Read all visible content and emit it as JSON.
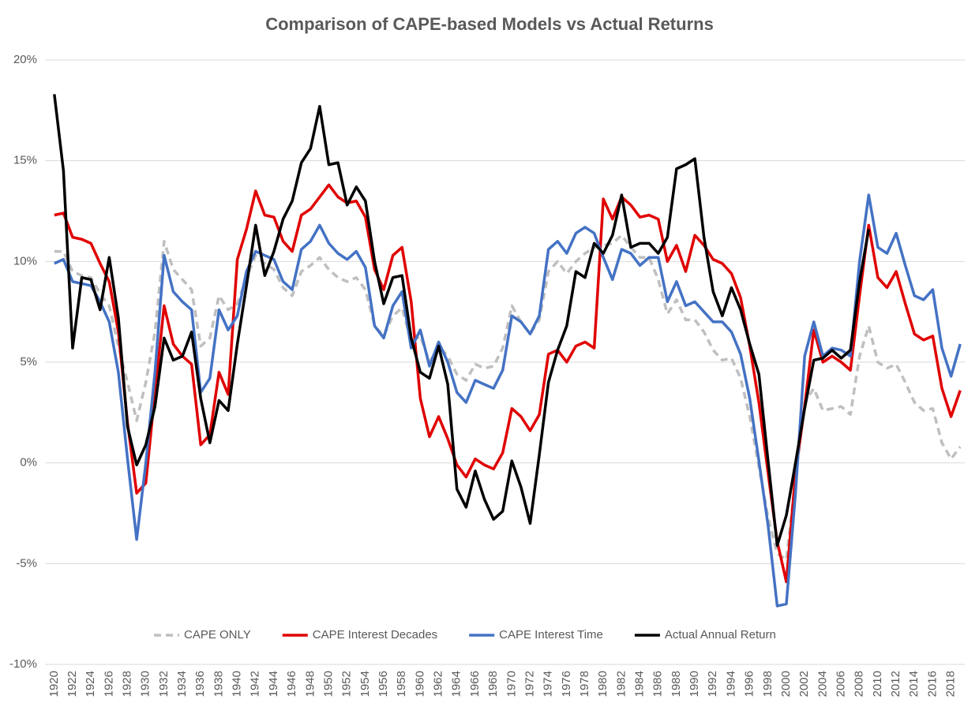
{
  "chart_data": {
    "type": "line",
    "title": "Comparison of CAPE-based Models vs Actual Returns",
    "x": [
      1920,
      1921,
      1922,
      1923,
      1924,
      1925,
      1926,
      1927,
      1928,
      1929,
      1930,
      1931,
      1932,
      1933,
      1934,
      1935,
      1936,
      1937,
      1938,
      1939,
      1940,
      1941,
      1942,
      1943,
      1944,
      1945,
      1946,
      1947,
      1948,
      1949,
      1950,
      1951,
      1952,
      1953,
      1954,
      1955,
      1956,
      1957,
      1958,
      1959,
      1960,
      1961,
      1962,
      1963,
      1964,
      1965,
      1966,
      1967,
      1968,
      1969,
      1970,
      1971,
      1972,
      1973,
      1974,
      1975,
      1976,
      1977,
      1978,
      1979,
      1980,
      1981,
      1982,
      1983,
      1984,
      1985,
      1986,
      1987,
      1988,
      1989,
      1990,
      1991,
      1992,
      1993,
      1994,
      1995,
      1996,
      1997,
      1998,
      1999,
      2000,
      2001,
      2002,
      2003,
      2004,
      2005,
      2006,
      2007,
      2008,
      2009,
      2010,
      2011,
      2012,
      2013,
      2014,
      2015,
      2016,
      2017,
      2018,
      2019
    ],
    "xlim": [
      1919.5,
      2019.5
    ],
    "xticks": [
      1920,
      1922,
      1924,
      1926,
      1928,
      1930,
      1932,
      1934,
      1936,
      1938,
      1940,
      1942,
      1944,
      1946,
      1948,
      1950,
      1952,
      1954,
      1956,
      1958,
      1960,
      1962,
      1964,
      1966,
      1968,
      1970,
      1972,
      1974,
      1976,
      1978,
      1980,
      1982,
      1984,
      1986,
      1988,
      1990,
      1992,
      1994,
      1996,
      1998,
      2000,
      2002,
      2004,
      2006,
      2008,
      2010,
      2012,
      2014,
      2016,
      2018
    ],
    "ylim": [
      -10,
      20
    ],
    "yticks": [
      {
        "value": -10,
        "label": "-10%"
      },
      {
        "value": -5,
        "label": "-5%"
      },
      {
        "value": 0,
        "label": "0%"
      },
      {
        "value": 5,
        "label": "5%"
      },
      {
        "value": 10,
        "label": "10%"
      },
      {
        "value": 15,
        "label": "15%"
      },
      {
        "value": 20,
        "label": "20%"
      }
    ],
    "grid": true,
    "legend": "bottom",
    "series": [
      {
        "name": "CAPE ONLY",
        "color": "#bfbfbf",
        "dashed": true,
        "values": [
          10.5,
          10.5,
          9.5,
          9.3,
          9.2,
          8.4,
          7.8,
          5.8,
          4.0,
          2.1,
          4.0,
          6.5,
          11.0,
          9.6,
          9.1,
          8.6,
          5.8,
          6.2,
          8.3,
          7.6,
          7.9,
          9.2,
          10.3,
          9.9,
          9.6,
          8.7,
          8.3,
          9.5,
          9.8,
          10.2,
          9.6,
          9.2,
          9.0,
          9.2,
          8.6,
          6.8,
          6.3,
          7.3,
          7.7,
          6.0,
          6.3,
          5.0,
          5.8,
          5.3,
          4.4,
          4.1,
          4.9,
          4.7,
          4.8,
          5.7,
          7.8,
          7.0,
          6.4,
          7.1,
          9.5,
          10.0,
          9.4,
          10.0,
          10.4,
          10.7,
          10.8,
          10.9,
          11.3,
          10.7,
          10.2,
          10.2,
          9.1,
          7.4,
          8.1,
          7.1,
          7.1,
          6.5,
          5.6,
          5.1,
          5.2,
          4.2,
          2.3,
          -0.2,
          -2.7,
          -4.5,
          -4.8,
          -0.8,
          3.0,
          3.7,
          2.6,
          2.7,
          2.8,
          2.4,
          5.3,
          6.8,
          5.0,
          4.7,
          4.9,
          4.0,
          3.0,
          2.6,
          2.7,
          1.0,
          0.2,
          0.8
        ]
      },
      {
        "name": "CAPE Interest Decades",
        "color": "#e00000",
        "dashed": false,
        "values": [
          12.3,
          12.4,
          11.2,
          11.1,
          10.9,
          9.9,
          9.0,
          6.5,
          2.0,
          -1.5,
          -1.0,
          3.5,
          7.8,
          5.9,
          5.3,
          4.9,
          0.9,
          1.4,
          4.5,
          3.4,
          10.1,
          11.6,
          13.5,
          12.3,
          12.2,
          11.0,
          10.5,
          12.3,
          12.6,
          13.2,
          13.8,
          13.2,
          12.9,
          13.0,
          12.2,
          9.6,
          8.6,
          10.3,
          10.7,
          8.0,
          3.2,
          1.3,
          2.3,
          1.2,
          -0.1,
          -0.7,
          0.2,
          -0.1,
          -0.3,
          0.5,
          2.7,
          2.3,
          1.6,
          2.4,
          5.4,
          5.6,
          5.0,
          5.8,
          6.0,
          5.7,
          13.1,
          12.1,
          13.2,
          12.8,
          12.2,
          12.3,
          12.1,
          10.0,
          10.8,
          9.5,
          11.3,
          10.8,
          10.1,
          9.9,
          9.4,
          8.2,
          5.8,
          3.0,
          -0.5,
          -3.9,
          -5.9,
          -0.5,
          2.8,
          6.6,
          5.0,
          5.3,
          5.0,
          4.6,
          8.3,
          11.8,
          9.2,
          8.7,
          9.5,
          7.9,
          6.4,
          6.1,
          6.3,
          3.7,
          2.3,
          3.6
        ]
      },
      {
        "name": "CAPE Interest Time",
        "color": "#4472c4",
        "dashed": false,
        "values": [
          9.9,
          10.1,
          9.0,
          8.9,
          8.8,
          8.0,
          7.0,
          4.5,
          0.2,
          -3.8,
          0.0,
          4.5,
          10.3,
          8.5,
          8.0,
          7.6,
          3.5,
          4.2,
          7.6,
          6.6,
          7.3,
          9.5,
          10.5,
          10.3,
          10.1,
          9.0,
          8.6,
          10.6,
          11.0,
          11.8,
          10.9,
          10.4,
          10.1,
          10.5,
          9.7,
          6.8,
          6.2,
          7.8,
          8.5,
          5.7,
          6.6,
          4.8,
          6.0,
          5.0,
          3.5,
          3.0,
          4.1,
          3.9,
          3.7,
          4.6,
          7.3,
          7.0,
          6.4,
          7.3,
          10.6,
          11.0,
          10.4,
          11.4,
          11.7,
          11.4,
          10.2,
          9.1,
          10.6,
          10.4,
          9.8,
          10.2,
          10.2,
          8.0,
          9.0,
          7.8,
          8.0,
          7.5,
          7.0,
          7.0,
          6.5,
          5.4,
          3.2,
          0.1,
          -3.1,
          -7.1,
          -7.0,
          -1.5,
          5.3,
          7.0,
          5.3,
          5.7,
          5.6,
          5.3,
          10.0,
          13.3,
          10.7,
          10.4,
          11.4,
          9.8,
          8.3,
          8.1,
          8.6,
          5.7,
          4.3,
          5.9
        ]
      },
      {
        "name": "Actual Annual Return",
        "color": "#000000",
        "dashed": false,
        "values": [
          18.3,
          14.5,
          5.7,
          9.2,
          9.1,
          7.6,
          10.2,
          7.2,
          1.8,
          -0.1,
          0.9,
          2.8,
          6.2,
          5.1,
          5.3,
          6.5,
          3.2,
          1.0,
          3.1,
          2.6,
          5.9,
          8.8,
          11.8,
          9.3,
          10.5,
          12.1,
          13.0,
          14.9,
          15.6,
          17.7,
          14.8,
          14.9,
          12.8,
          13.7,
          13.0,
          10.0,
          7.9,
          9.2,
          9.3,
          6.2,
          4.5,
          4.2,
          5.8,
          3.9,
          -1.3,
          -2.2,
          -0.4,
          -1.8,
          -2.8,
          -2.4,
          0.1,
          -1.2,
          -3.0,
          0.4,
          4.0,
          5.6,
          6.8,
          9.5,
          9.2,
          10.9,
          10.4,
          11.3,
          13.3,
          10.7,
          10.9,
          10.9,
          10.4,
          11.2,
          14.6,
          14.8,
          15.1,
          11.2,
          8.5,
          7.3,
          8.7,
          7.6,
          5.9,
          4.4,
          0.1,
          -4.1,
          -2.6,
          0.0,
          2.7,
          5.1,
          5.2,
          5.6,
          5.2,
          5.6,
          9.0,
          11.6,
          null,
          null,
          null,
          null,
          null,
          null,
          null,
          null,
          null,
          null
        ]
      }
    ]
  }
}
